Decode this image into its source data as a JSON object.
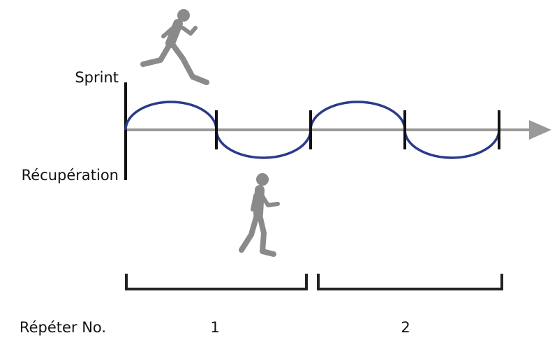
{
  "labels": {
    "sprint": "Sprint",
    "recovery": "Récupération"
  },
  "repeat_label": "Répéter No.",
  "repeats": [
    "1",
    "2"
  ]
}
